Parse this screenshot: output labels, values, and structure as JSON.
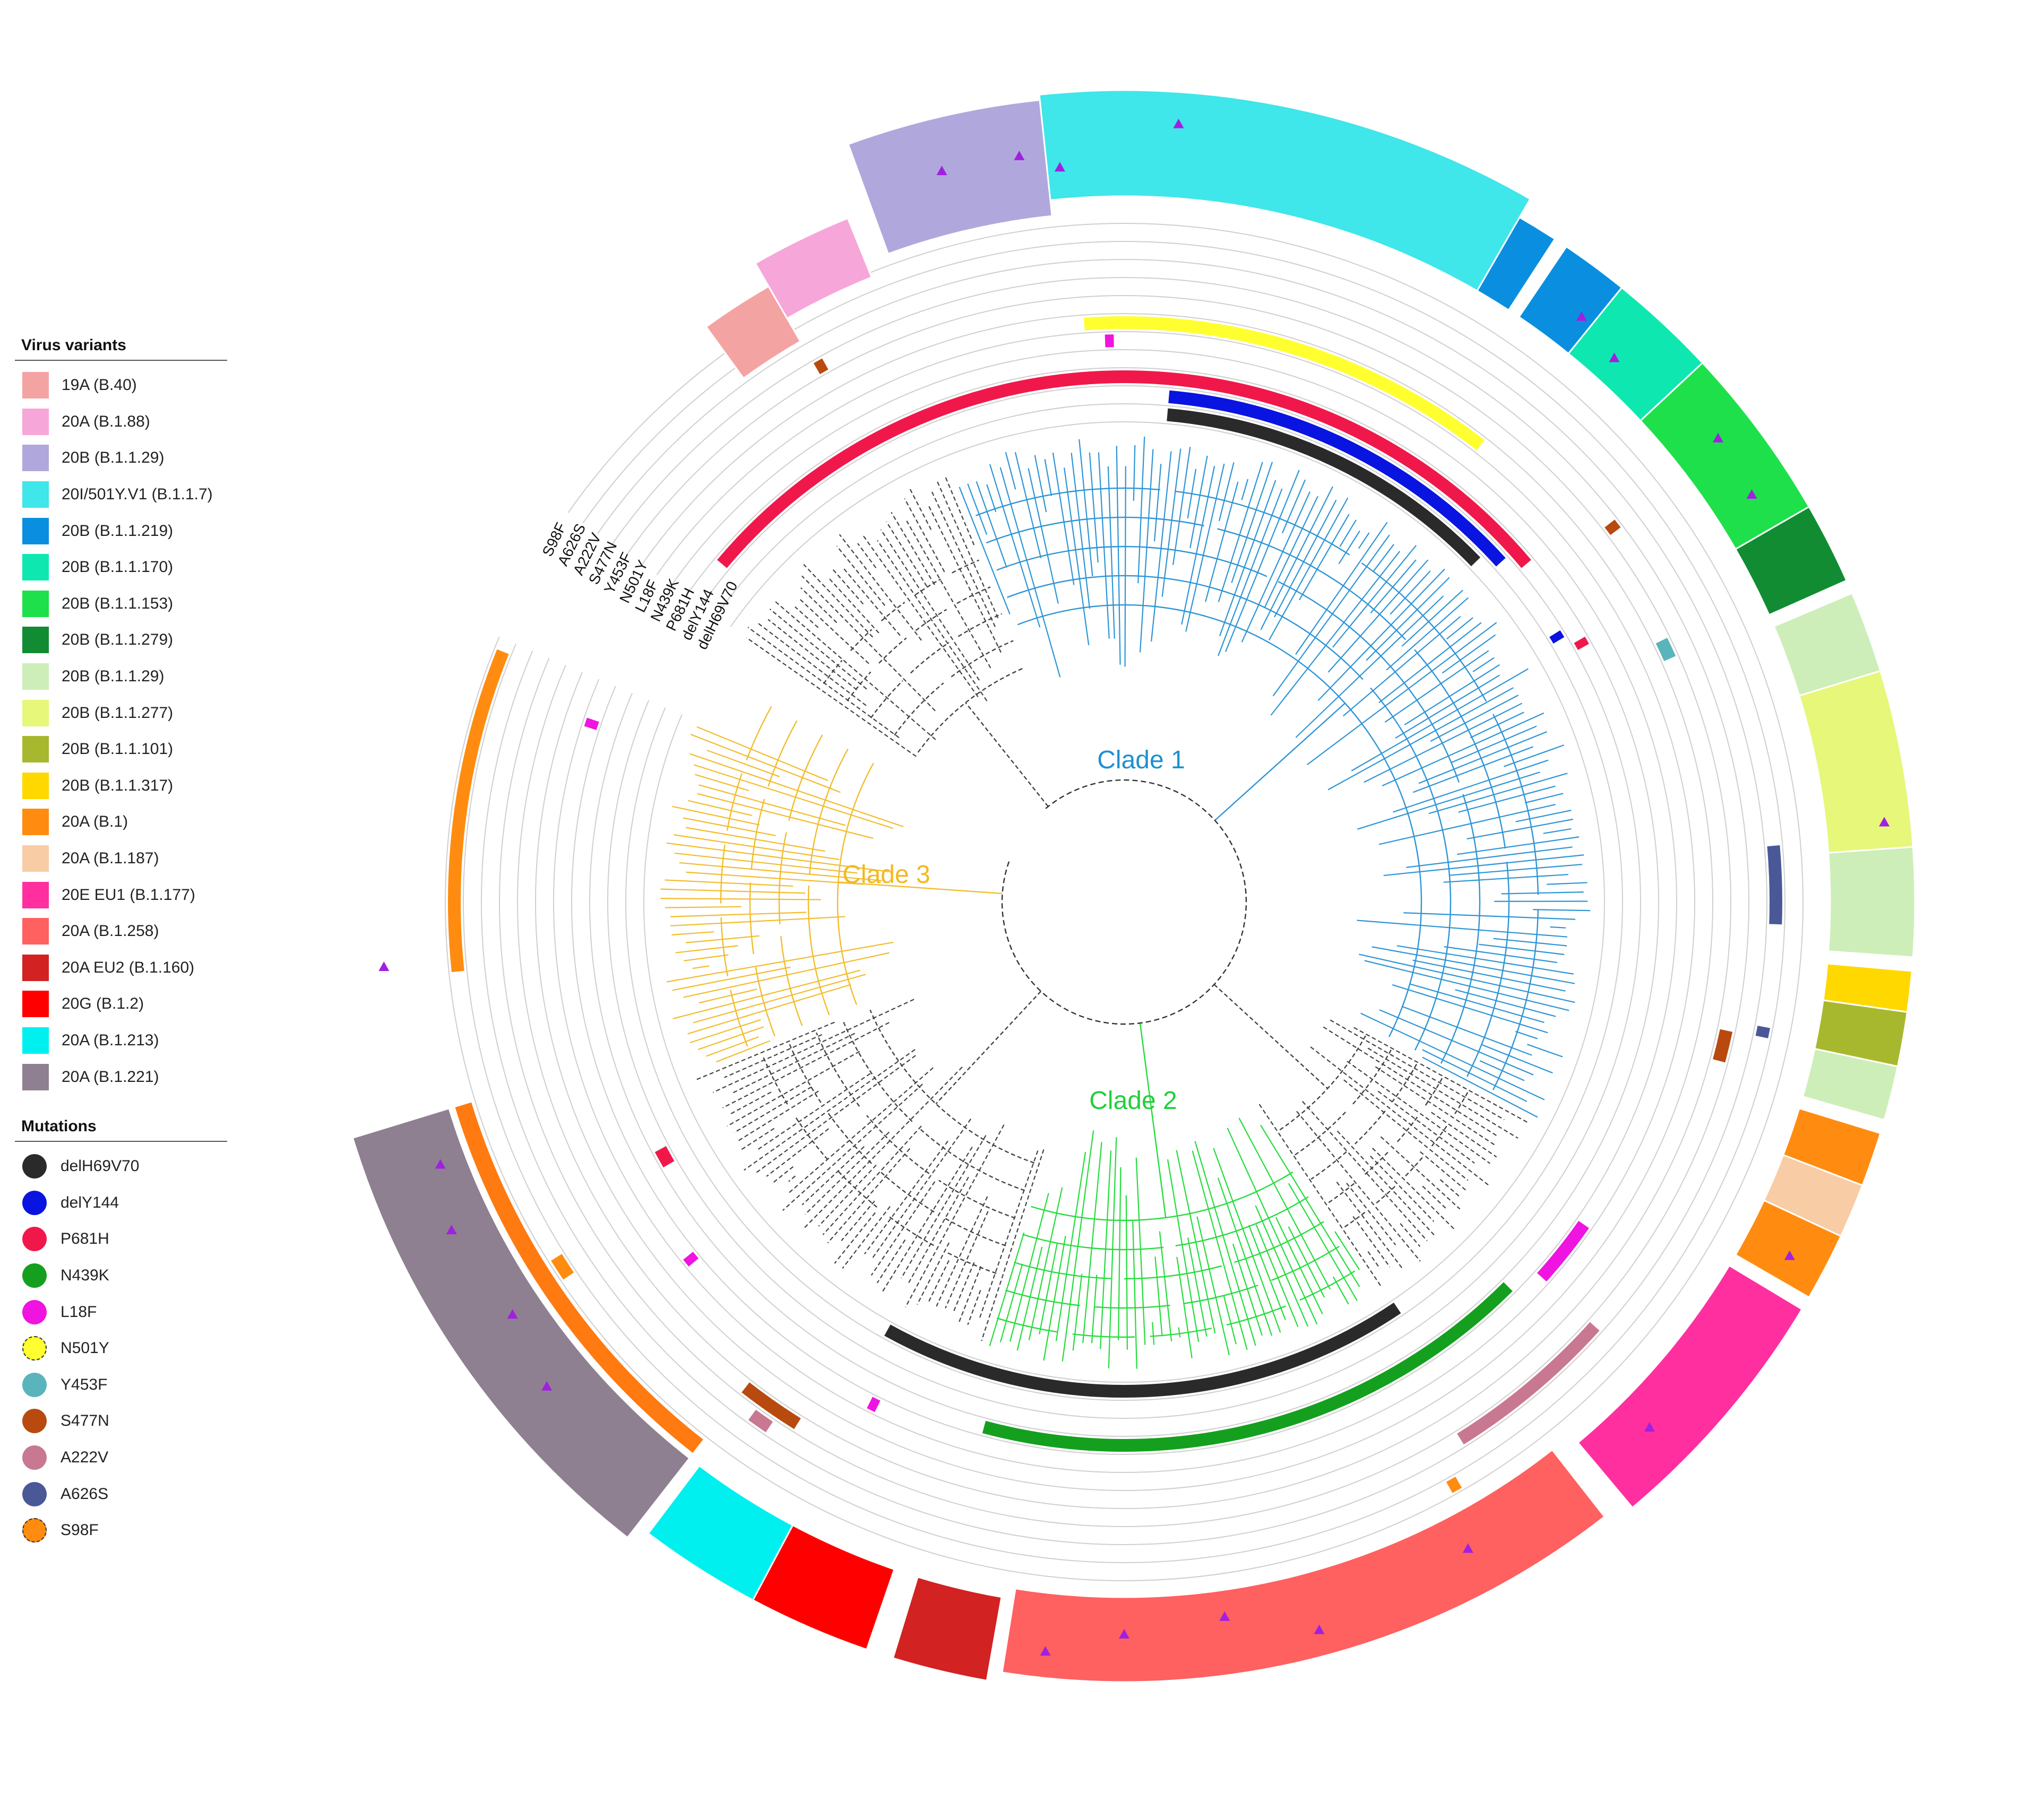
{
  "legends": {
    "variants_title": "Virus variants",
    "variants": [
      {
        "label": "19A (B.40)",
        "color": "#f4a3a3"
      },
      {
        "label": "20A (B.1.88)",
        "color": "#f7a6d9"
      },
      {
        "label": "20B (B.1.1.29)",
        "color": "#b0a8dc"
      },
      {
        "label": "20I/501Y.V1 (B.1.1.7)",
        "color": "#3fe6ea"
      },
      {
        "label": "20B (B.1.1.219)",
        "color": "#0a8fe0"
      },
      {
        "label": "20B (B.1.1.170)",
        "color": "#0ee8b0"
      },
      {
        "label": "20B (B.1.1.153)",
        "color": "#1ee04a"
      },
      {
        "label": "20B (B.1.1.279)",
        "color": "#118c32"
      },
      {
        "label": "20B (B.1.1.29)",
        "color": "#cdeeb8"
      },
      {
        "label": "20B (B.1.1.277)",
        "color": "#e6f77a"
      },
      {
        "label": "20B (B.1.1.101)",
        "color": "#a8b82e"
      },
      {
        "label": "20B (B.1.1.317)",
        "color": "#ffd800"
      },
      {
        "label": "20A (B.1)",
        "color": "#ff8c10"
      },
      {
        "label": "20A (B.1.187)",
        "color": "#f8cca4"
      },
      {
        "label": "20E EU1 (B.1.177)",
        "color": "#ff2fa0"
      },
      {
        "label": "20A (B.1.258)",
        "color": "#ff6060"
      },
      {
        "label": "20A EU2 (B.1.160)",
        "color": "#d22222"
      },
      {
        "label": "20G (B.1.2)",
        "color": "#ff0000"
      },
      {
        "label": "20A (B.1.213)",
        "color": "#00f0f0"
      },
      {
        "label": "20A (B.1.221)",
        "color": "#8e8090"
      }
    ],
    "mutations_title": "Mutations",
    "mutations": [
      {
        "label": "delH69V70",
        "color": "#2a2a2a"
      },
      {
        "label": "delY144",
        "color": "#0a14e0"
      },
      {
        "label": "P681H",
        "color": "#f0184a"
      },
      {
        "label": "N439K",
        "color": "#14a01e"
      },
      {
        "label": "L18F",
        "color": "#f014e0"
      },
      {
        "label": "N501Y",
        "color": "#ffff30"
      },
      {
        "label": "Y453F",
        "color": "#5ab4bc"
      },
      {
        "label": "S477N",
        "color": "#b84a10"
      },
      {
        "label": "A222V",
        "color": "#c87890"
      },
      {
        "label": "A626S",
        "color": "#4a5898"
      },
      {
        "label": "S98F",
        "color": "#ff8c10"
      }
    ]
  },
  "ring_labels": [
    "S98F",
    "A626S",
    "A222V",
    "S477N",
    "Y453F",
    "N501Y",
    "L18F",
    "N439K",
    "P681H",
    "delY144",
    "delH69V70"
  ],
  "clades": [
    {
      "label": "Clade 1",
      "color": "#1e90d0"
    },
    {
      "label": "Clade 2",
      "color": "#22d03a"
    },
    {
      "label": "Clade 3",
      "color": "#f4b820"
    }
  ]
}
